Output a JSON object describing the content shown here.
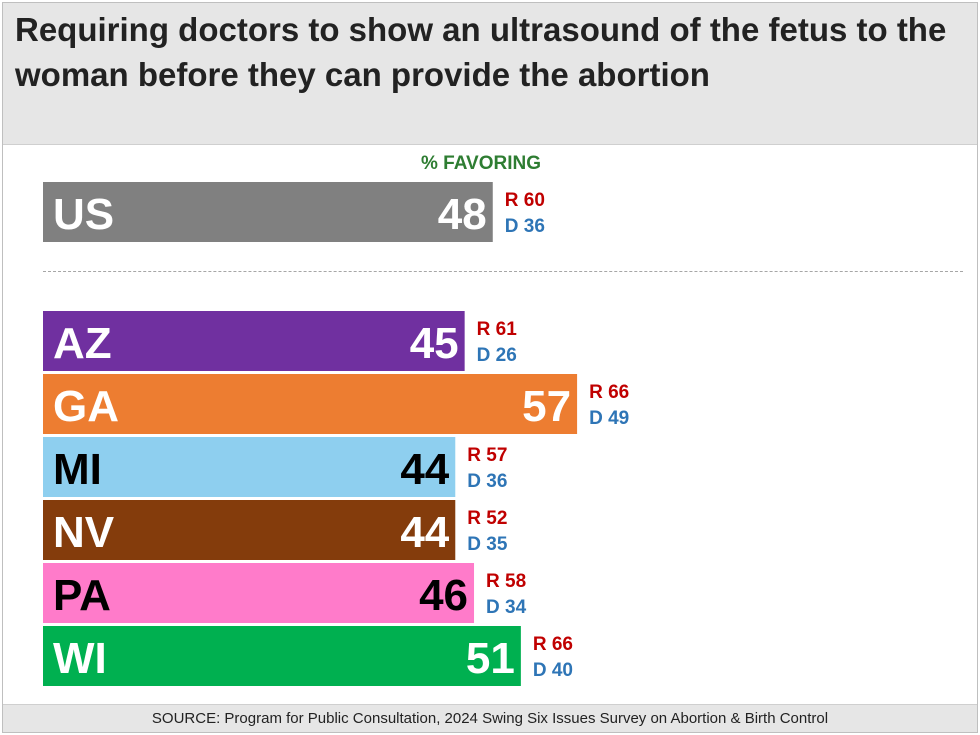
{
  "header": {
    "title": "Requiring doctors to show an ultrasound of the fetus to the woman before they can provide the abortion"
  },
  "chart_data": {
    "type": "bar",
    "orientation": "horizontal",
    "title": "Requiring doctors to show an ultrasound of the fetus to the woman before they can provide the abortion",
    "value_caption": "% FAVORING",
    "categories": [
      "US",
      "AZ",
      "GA",
      "MI",
      "NV",
      "PA",
      "WI"
    ],
    "values": [
      48,
      45,
      57,
      44,
      44,
      46,
      51
    ],
    "series": [
      {
        "name": "R",
        "values": [
          60,
          61,
          66,
          57,
          52,
          58,
          66
        ]
      },
      {
        "name": "D",
        "values": [
          36,
          26,
          49,
          36,
          35,
          34,
          40
        ]
      }
    ],
    "bar_colors": [
      "#808080",
      "#7030a0",
      "#ed7d31",
      "#8ecfef",
      "#843c0c",
      "#ff7bca",
      "#00b050"
    ],
    "label_colors": [
      "#ffffff",
      "#ffffff",
      "#ffffff",
      "#000000",
      "#ffffff",
      "#000000",
      "#ffffff"
    ],
    "r_color": "#c00000",
    "d_color": "#2e75b6",
    "r_prefix": "R",
    "d_prefix": "D",
    "legend": "none",
    "grid": false
  },
  "footer": {
    "source": "SOURCE: Program for Public Consultation, 2024 Swing Six Issues Survey on Abortion & Birth Control"
  }
}
